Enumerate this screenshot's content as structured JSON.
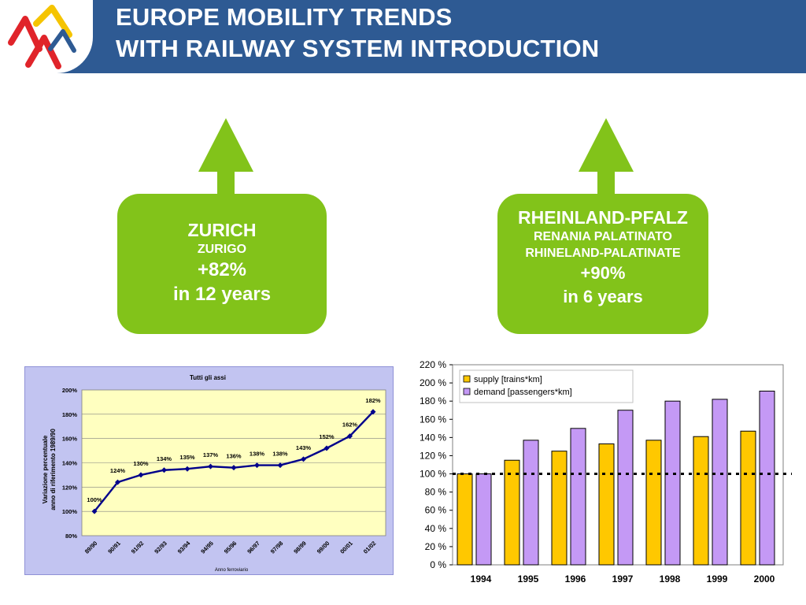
{
  "header": {
    "title_line1": "EUROPE MOBILITY TRENDS",
    "title_line2": "WITH RAILWAY SYSTEM INTRODUCTION"
  },
  "colors": {
    "header_bg": "#2e5a93",
    "bubble_green": "#82c31a",
    "supply_bar": "#ffc800",
    "demand_bar": "#c499f5",
    "line_series": "#00008b",
    "plot_bg_left": "#ffffc0",
    "chart_frame_left": "#c2c4f1"
  },
  "zurich": {
    "city": "ZURICH",
    "alt_name": "ZURIGO",
    "change": "+82%",
    "period": "in 12 years"
  },
  "rheinland": {
    "region": "RHEINLAND-PFALZ",
    "alt_name_1": "RENANIA PALATINATO",
    "alt_name_2": "RHINELAND-PALATINATE",
    "change": "+90%",
    "period": "in 6 years"
  },
  "chart_data": [
    {
      "type": "line",
      "title": "Tutti gli assi",
      "xlabel": "Anno ferroviario",
      "ylabel": "Variazione percentuale anno di riferimento 1989/90",
      "categories": [
        "89/90",
        "90/91",
        "91/92",
        "92/93",
        "93/94",
        "94/95",
        "95/96",
        "96/97",
        "97/98",
        "98/99",
        "99/00",
        "00/01",
        "01/02"
      ],
      "values": [
        100,
        124,
        130,
        134,
        135,
        137,
        136,
        138,
        138,
        143,
        152,
        162,
        182
      ],
      "data_labels": [
        "100%",
        "124%",
        "130%",
        "134%",
        "135%",
        "137%",
        "136%",
        "138%",
        "138%",
        "143%",
        "152%",
        "162%",
        "182%"
      ],
      "yticks": [
        "80%",
        "100%",
        "120%",
        "140%",
        "160%",
        "180%",
        "200%"
      ],
      "ylim": [
        80,
        200
      ],
      "grid": true
    },
    {
      "type": "bar",
      "categories": [
        "1994",
        "1995",
        "1996",
        "1997",
        "1998",
        "1999",
        "2000"
      ],
      "series": [
        {
          "name": "supply [trains*km]",
          "values": [
            100,
            115,
            125,
            133,
            137,
            141,
            147
          ]
        },
        {
          "name": "demand [passengers*km]",
          "values": [
            100,
            137,
            150,
            170,
            180,
            182,
            191
          ]
        }
      ],
      "yticks": [
        "0 %",
        "20 %",
        "40 %",
        "60 %",
        "80 %",
        "100 %",
        "120 %",
        "140 %",
        "160 %",
        "180 %",
        "200 %",
        "220 %"
      ],
      "ylim": [
        0,
        220
      ],
      "reference_line": 100,
      "legend": "top-left",
      "grid": false
    }
  ]
}
